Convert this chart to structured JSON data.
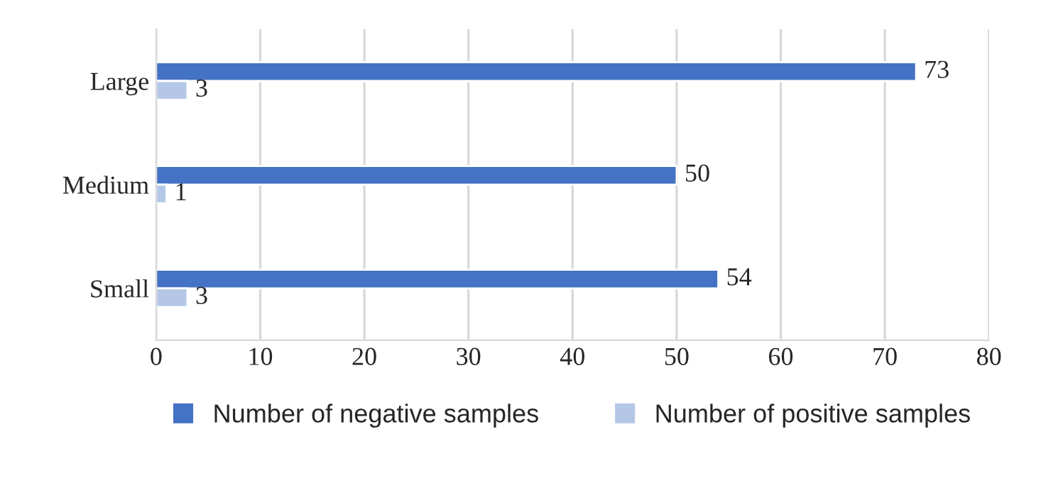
{
  "chart_data": {
    "type": "bar",
    "orientation": "horizontal",
    "categories": [
      "Large",
      "Medium",
      "Small"
    ],
    "series": [
      {
        "name": "Number of negative samples",
        "color": "#4472c4",
        "values": [
          73,
          50,
          54
        ]
      },
      {
        "name": "Number of positive samples",
        "color": "#b4c7e7",
        "values": [
          3,
          1,
          3
        ]
      }
    ],
    "xlim": [
      0,
      80
    ],
    "xticks": [
      0,
      10,
      20,
      30,
      40,
      50,
      60,
      70,
      80
    ],
    "grid": "x",
    "legend": "bottom",
    "data_labels": true
  }
}
